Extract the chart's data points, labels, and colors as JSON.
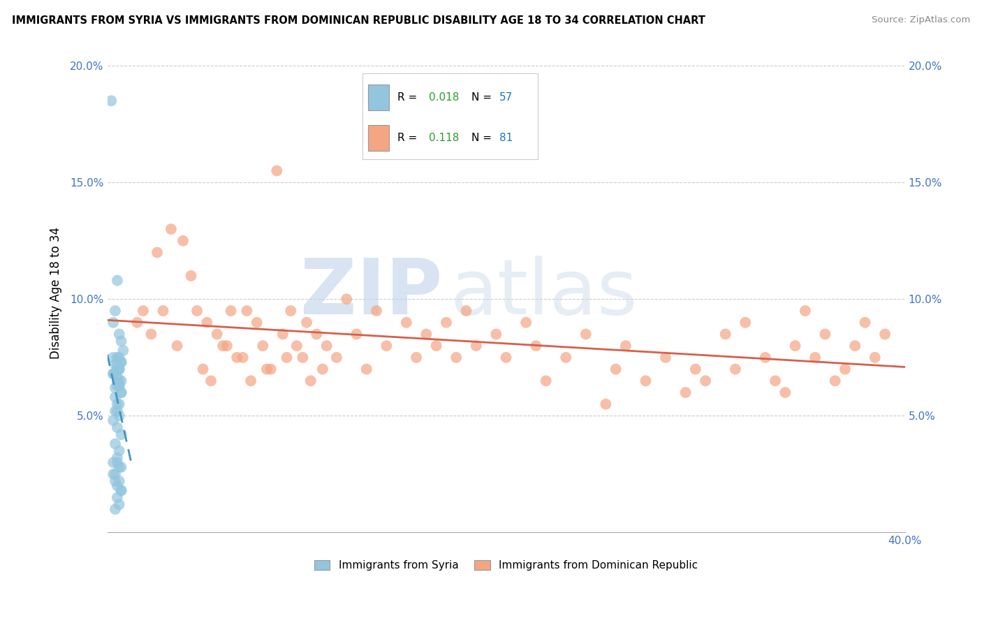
{
  "title": "IMMIGRANTS FROM SYRIA VS IMMIGRANTS FROM DOMINICAN REPUBLIC DISABILITY AGE 18 TO 34 CORRELATION CHART",
  "source": "Source: ZipAtlas.com",
  "ylabel": "Disability Age 18 to 34",
  "xlim": [
    0.0,
    0.4
  ],
  "ylim": [
    0.0,
    0.205
  ],
  "ytick_values": [
    0.05,
    0.1,
    0.15,
    0.2
  ],
  "ytick_labels": [
    "5.0%",
    "10.0%",
    "15.0%",
    "20.0%"
  ],
  "legend_label_syria": "Immigrants from Syria",
  "legend_label_dr": "Immigrants from Dominican Republic",
  "color_syria": "#92c5de",
  "color_dr": "#f4a582",
  "color_trendline_syria": "#4393c3",
  "color_trendline_dr": "#d6604d",
  "r_syria": "0.018",
  "n_syria": "57",
  "r_dr": "0.118",
  "n_dr": "81",
  "r_color": "#2ca02c",
  "n_color": "#1f77b4",
  "background_color": "#ffffff",
  "grid_color": "#cccccc",
  "watermark_zip": "ZIP",
  "watermark_atlas": "atlas",
  "watermark_color_zip": "#c8d8e8",
  "watermark_color_atlas": "#b8c8d8",
  "syria_x": [
    0.002,
    0.005,
    0.004,
    0.003,
    0.006,
    0.007,
    0.008,
    0.005,
    0.004,
    0.006,
    0.003,
    0.005,
    0.007,
    0.006,
    0.004,
    0.005,
    0.003,
    0.006,
    0.007,
    0.005,
    0.004,
    0.006,
    0.005,
    0.007,
    0.004,
    0.006,
    0.005,
    0.003,
    0.007,
    0.006,
    0.004,
    0.005,
    0.006,
    0.007,
    0.005,
    0.004,
    0.006,
    0.003,
    0.005,
    0.007,
    0.004,
    0.006,
    0.005,
    0.003,
    0.007,
    0.004,
    0.006,
    0.005,
    0.007,
    0.003,
    0.006,
    0.005,
    0.004,
    0.007,
    0.005,
    0.006,
    0.004
  ],
  "syria_y": [
    0.185,
    0.108,
    0.095,
    0.09,
    0.085,
    0.082,
    0.078,
    0.075,
    0.072,
    0.07,
    0.068,
    0.067,
    0.065,
    0.063,
    0.062,
    0.07,
    0.068,
    0.075,
    0.073,
    0.072,
    0.068,
    0.065,
    0.063,
    0.06,
    0.058,
    0.055,
    0.052,
    0.075,
    0.073,
    0.07,
    0.068,
    0.065,
    0.063,
    0.06,
    0.055,
    0.052,
    0.05,
    0.048,
    0.045,
    0.042,
    0.038,
    0.035,
    0.032,
    0.03,
    0.028,
    0.025,
    0.022,
    0.02,
    0.018,
    0.025,
    0.028,
    0.03,
    0.022,
    0.018,
    0.015,
    0.012,
    0.01
  ],
  "dr_x": [
    0.015,
    0.018,
    0.022,
    0.025,
    0.028,
    0.032,
    0.035,
    0.038,
    0.042,
    0.045,
    0.05,
    0.055,
    0.06,
    0.065,
    0.07,
    0.075,
    0.08,
    0.085,
    0.09,
    0.095,
    0.1,
    0.105,
    0.11,
    0.115,
    0.12,
    0.125,
    0.13,
    0.135,
    0.14,
    0.15,
    0.155,
    0.16,
    0.165,
    0.17,
    0.175,
    0.18,
    0.185,
    0.195,
    0.2,
    0.21,
    0.215,
    0.22,
    0.23,
    0.24,
    0.25,
    0.255,
    0.26,
    0.27,
    0.28,
    0.29,
    0.295,
    0.3,
    0.31,
    0.315,
    0.32,
    0.33,
    0.335,
    0.34,
    0.345,
    0.35,
    0.355,
    0.36,
    0.365,
    0.37,
    0.375,
    0.38,
    0.385,
    0.39,
    0.048,
    0.052,
    0.058,
    0.062,
    0.068,
    0.072,
    0.078,
    0.082,
    0.088,
    0.092,
    0.098,
    0.102,
    0.108
  ],
  "dr_y": [
    0.09,
    0.095,
    0.085,
    0.12,
    0.095,
    0.13,
    0.08,
    0.125,
    0.11,
    0.095,
    0.09,
    0.085,
    0.08,
    0.075,
    0.095,
    0.09,
    0.07,
    0.155,
    0.075,
    0.08,
    0.09,
    0.085,
    0.08,
    0.075,
    0.1,
    0.085,
    0.07,
    0.095,
    0.08,
    0.09,
    0.075,
    0.085,
    0.08,
    0.09,
    0.075,
    0.095,
    0.08,
    0.085,
    0.075,
    0.09,
    0.08,
    0.065,
    0.075,
    0.085,
    0.055,
    0.07,
    0.08,
    0.065,
    0.075,
    0.06,
    0.07,
    0.065,
    0.085,
    0.07,
    0.09,
    0.075,
    0.065,
    0.06,
    0.08,
    0.095,
    0.075,
    0.085,
    0.065,
    0.07,
    0.08,
    0.09,
    0.075,
    0.085,
    0.07,
    0.065,
    0.08,
    0.095,
    0.075,
    0.065,
    0.08,
    0.07,
    0.085,
    0.095,
    0.075,
    0.065,
    0.07
  ]
}
